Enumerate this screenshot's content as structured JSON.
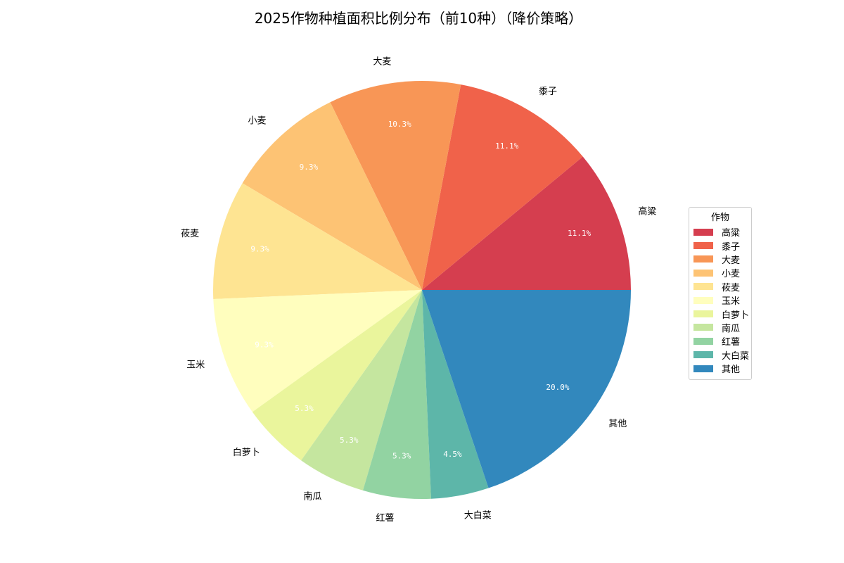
{
  "chart_data": {
    "type": "pie",
    "title": "2025作物种植面积比例分布（前10种）（降价策略）",
    "legend_title": "作物",
    "legend_position": "right",
    "start_angle_deg": 0,
    "direction": "counterclockwise",
    "categories": [
      "高粱",
      "黍子",
      "大麦",
      "小麦",
      "莜麦",
      "玉米",
      "白萝卜",
      "南瓜",
      "红薯",
      "大白菜",
      "其他"
    ],
    "values": [
      11.1,
      11.1,
      10.3,
      9.3,
      9.3,
      9.3,
      5.3,
      5.3,
      5.3,
      4.5,
      20.0
    ],
    "value_labels": [
      "11.1%",
      "11.1%",
      "10.3%",
      "9.3%",
      "9.3%",
      "9.3%",
      "5.3%",
      "5.3%",
      "5.3%",
      "4.5%",
      "20.0%"
    ],
    "colors": [
      "#d53e4f",
      "#f0624a",
      "#f89656",
      "#fdc374",
      "#fee492",
      "#fffebe",
      "#eaf59c",
      "#c5e69f",
      "#92d3a2",
      "#5db6a9",
      "#3288bd"
    ]
  }
}
